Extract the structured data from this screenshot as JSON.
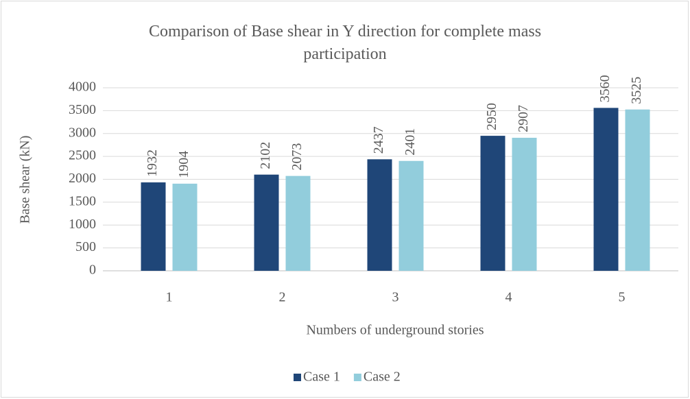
{
  "chart_data": {
    "type": "bar",
    "title": "Comparison of Base shear in Y direction for complete mass participation",
    "x_label": "Numbers of underground stories",
    "y_label": "Base shear (kN)",
    "categories": [
      "1",
      "2",
      "3",
      "4",
      "5"
    ],
    "series": [
      {
        "name": "Case 1",
        "color": "#1f4678",
        "values": [
          1932,
          2102,
          2437,
          2950,
          3560
        ]
      },
      {
        "name": "Case 2",
        "color": "#92cddc",
        "values": [
          1904,
          2073,
          2401,
          2907,
          3525
        ]
      }
    ],
    "ylim": [
      0,
      4000
    ],
    "yticks": [
      0,
      500,
      1000,
      1500,
      2000,
      2500,
      3000,
      3500,
      4000
    ],
    "grid": true,
    "legend": "bottom"
  }
}
